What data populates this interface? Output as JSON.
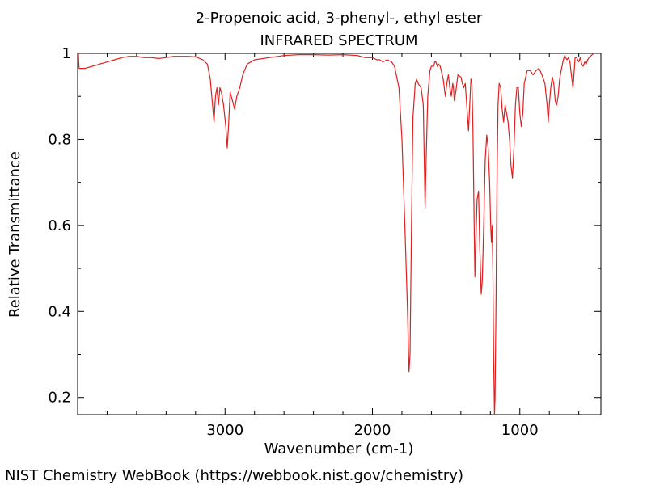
{
  "chart_data": {
    "type": "line",
    "title": "2-Propenoic acid, 3-phenyl-, ethyl ester",
    "subtitle": "INFRARED SPECTRUM",
    "xlabel": "Wavenumber (cm-1)",
    "ylabel": "Relative Transmittance",
    "xlim": [
      4000,
      450
    ],
    "ylim": [
      0.16,
      1.0
    ],
    "x_reversed": true,
    "grid": false,
    "line_color": "#e02020",
    "xticks": [
      {
        "value": 3000,
        "label": "3000"
      },
      {
        "value": 2000,
        "label": "2000"
      },
      {
        "value": 1000,
        "label": "1000"
      }
    ],
    "yticks": [
      {
        "value": 1.0,
        "label": "1"
      },
      {
        "value": 0.8,
        "label": "0.8"
      },
      {
        "value": 0.6,
        "label": "0.6"
      },
      {
        "value": 0.4,
        "label": "0.4"
      },
      {
        "value": 0.2,
        "label": "0.2"
      }
    ],
    "series": [
      {
        "points": [
          [
            3995,
            1.0
          ],
          [
            3990,
            0.965
          ],
          [
            3950,
            0.965
          ],
          [
            3900,
            0.97
          ],
          [
            3850,
            0.975
          ],
          [
            3800,
            0.98
          ],
          [
            3750,
            0.985
          ],
          [
            3700,
            0.99
          ],
          [
            3650,
            0.993
          ],
          [
            3600,
            0.993
          ],
          [
            3550,
            0.99
          ],
          [
            3500,
            0.99
          ],
          [
            3450,
            0.988
          ],
          [
            3400,
            0.99
          ],
          [
            3350,
            0.993
          ],
          [
            3300,
            0.993
          ],
          [
            3250,
            0.993
          ],
          [
            3200,
            0.992
          ],
          [
            3150,
            0.985
          ],
          [
            3120,
            0.975
          ],
          [
            3100,
            0.94
          ],
          [
            3085,
            0.88
          ],
          [
            3075,
            0.84
          ],
          [
            3065,
            0.9
          ],
          [
            3055,
            0.92
          ],
          [
            3045,
            0.88
          ],
          [
            3035,
            0.92
          ],
          [
            3025,
            0.91
          ],
          [
            3010,
            0.88
          ],
          [
            2995,
            0.83
          ],
          [
            2985,
            0.78
          ],
          [
            2975,
            0.84
          ],
          [
            2965,
            0.91
          ],
          [
            2950,
            0.89
          ],
          [
            2935,
            0.87
          ],
          [
            2920,
            0.9
          ],
          [
            2900,
            0.92
          ],
          [
            2880,
            0.95
          ],
          [
            2850,
            0.975
          ],
          [
            2800,
            0.985
          ],
          [
            2700,
            0.99
          ],
          [
            2600,
            0.995
          ],
          [
            2500,
            0.997
          ],
          [
            2400,
            0.997
          ],
          [
            2300,
            0.996
          ],
          [
            2200,
            0.997
          ],
          [
            2100,
            0.995
          ],
          [
            2050,
            0.99
          ],
          [
            2000,
            0.99
          ],
          [
            1970,
            0.985
          ],
          [
            1950,
            0.985
          ],
          [
            1930,
            0.98
          ],
          [
            1900,
            0.985
          ],
          [
            1870,
            0.98
          ],
          [
            1850,
            0.97
          ],
          [
            1820,
            0.92
          ],
          [
            1800,
            0.8
          ],
          [
            1780,
            0.6
          ],
          [
            1762,
            0.4
          ],
          [
            1752,
            0.26
          ],
          [
            1745,
            0.3
          ],
          [
            1735,
            0.6
          ],
          [
            1725,
            0.85
          ],
          [
            1710,
            0.93
          ],
          [
            1700,
            0.94
          ],
          [
            1690,
            0.93
          ],
          [
            1670,
            0.92
          ],
          [
            1655,
            0.88
          ],
          [
            1643,
            0.64
          ],
          [
            1635,
            0.76
          ],
          [
            1625,
            0.9
          ],
          [
            1610,
            0.96
          ],
          [
            1600,
            0.97
          ],
          [
            1585,
            0.97
          ],
          [
            1577,
            0.98
          ],
          [
            1570,
            0.98
          ],
          [
            1560,
            0.97
          ],
          [
            1550,
            0.975
          ],
          [
            1540,
            0.97
          ],
          [
            1520,
            0.94
          ],
          [
            1505,
            0.9
          ],
          [
            1495,
            0.93
          ],
          [
            1485,
            0.95
          ],
          [
            1475,
            0.92
          ],
          [
            1465,
            0.9
          ],
          [
            1455,
            0.93
          ],
          [
            1450,
            0.92
          ],
          [
            1445,
            0.89
          ],
          [
            1435,
            0.91
          ],
          [
            1420,
            0.95
          ],
          [
            1400,
            0.945
          ],
          [
            1390,
            0.93
          ],
          [
            1380,
            0.92
          ],
          [
            1370,
            0.93
          ],
          [
            1360,
            0.88
          ],
          [
            1348,
            0.82
          ],
          [
            1340,
            0.88
          ],
          [
            1332,
            0.94
          ],
          [
            1325,
            0.93
          ],
          [
            1318,
            0.82
          ],
          [
            1310,
            0.6
          ],
          [
            1305,
            0.48
          ],
          [
            1300,
            0.55
          ],
          [
            1290,
            0.66
          ],
          [
            1280,
            0.68
          ],
          [
            1272,
            0.55
          ],
          [
            1262,
            0.44
          ],
          [
            1255,
            0.47
          ],
          [
            1245,
            0.6
          ],
          [
            1235,
            0.75
          ],
          [
            1225,
            0.81
          ],
          [
            1215,
            0.78
          ],
          [
            1205,
            0.7
          ],
          [
            1198,
            0.6
          ],
          [
            1193,
            0.56
          ],
          [
            1188,
            0.6
          ],
          [
            1183,
            0.5
          ],
          [
            1178,
            0.3
          ],
          [
            1172,
            0.16
          ],
          [
            1168,
            0.2
          ],
          [
            1162,
            0.4
          ],
          [
            1155,
            0.7
          ],
          [
            1148,
            0.88
          ],
          [
            1140,
            0.93
          ],
          [
            1130,
            0.92
          ],
          [
            1120,
            0.87
          ],
          [
            1110,
            0.84
          ],
          [
            1100,
            0.88
          ],
          [
            1090,
            0.86
          ],
          [
            1080,
            0.84
          ],
          [
            1070,
            0.8
          ],
          [
            1060,
            0.74
          ],
          [
            1050,
            0.71
          ],
          [
            1040,
            0.78
          ],
          [
            1030,
            0.88
          ],
          [
            1020,
            0.92
          ],
          [
            1010,
            0.92
          ],
          [
            1000,
            0.86
          ],
          [
            990,
            0.83
          ],
          [
            980,
            0.86
          ],
          [
            970,
            0.93
          ],
          [
            950,
            0.96
          ],
          [
            930,
            0.96
          ],
          [
            910,
            0.95
          ],
          [
            890,
            0.96
          ],
          [
            870,
            0.965
          ],
          [
            850,
            0.95
          ],
          [
            830,
            0.93
          ],
          [
            815,
            0.88
          ],
          [
            807,
            0.84
          ],
          [
            800,
            0.88
          ],
          [
            790,
            0.92
          ],
          [
            780,
            0.945
          ],
          [
            770,
            0.93
          ],
          [
            760,
            0.89
          ],
          [
            750,
            0.88
          ],
          [
            740,
            0.9
          ],
          [
            730,
            0.94
          ],
          [
            720,
            0.96
          ],
          [
            705,
            0.985
          ],
          [
            695,
            0.995
          ],
          [
            690,
            0.99
          ],
          [
            680,
            0.985
          ],
          [
            670,
            0.99
          ],
          [
            660,
            0.98
          ],
          [
            650,
            0.95
          ],
          [
            640,
            0.92
          ],
          [
            635,
            0.94
          ],
          [
            625,
            0.99
          ],
          [
            615,
            0.99
          ],
          [
            600,
            0.98
          ],
          [
            590,
            0.99
          ],
          [
            580,
            0.975
          ],
          [
            570,
            0.97
          ],
          [
            560,
            0.98
          ],
          [
            550,
            0.975
          ],
          [
            540,
            0.985
          ],
          [
            530,
            0.99
          ],
          [
            515,
            0.995
          ],
          [
            500,
            1.0
          ]
        ]
      }
    ]
  },
  "footer": {
    "source": "NIST Chemistry WebBook (https://webbook.nist.gov/chemistry)"
  }
}
